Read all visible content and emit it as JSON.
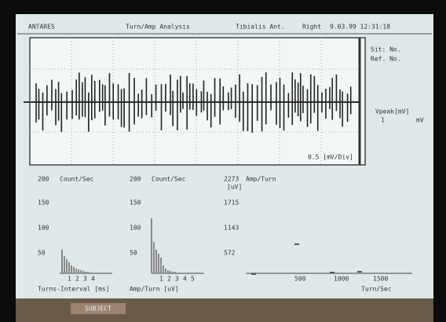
{
  "header": {
    "system": "ANTARES",
    "mode": "Turn/Amp Analysis",
    "muscle": "Tibialis Ant.",
    "side": "Right",
    "timestamp": "9.03.99 12:31:18"
  },
  "side_info": {
    "site": "Sit: No.",
    "ref": "Ref. No.",
    "vpeak": "Vpeak[mV]",
    "vpeak_value": "1",
    "unit": "mV"
  },
  "scale": "0.5 [mV/Div]",
  "panels": [
    {
      "title": "Count/Sec",
      "top": "200",
      "ticks": [
        "150",
        "100",
        "50"
      ],
      "xticks": [
        "1",
        "2",
        "3",
        "4"
      ],
      "xlabel": "Turns-Interval [ms]"
    },
    {
      "title": "Count/Sec",
      "top": "200",
      "ticks": [
        "150",
        "100",
        "50"
      ],
      "xticks": [
        "1",
        "2",
        "3",
        "4",
        "5"
      ],
      "xlabel": "Amp/Turn [uV]"
    },
    {
      "title": "Amp/Turn",
      "top": "2273",
      "unit": "[uV]",
      "ticks": [
        "1715",
        "1143",
        "572"
      ],
      "xticks": [
        "500",
        "1000",
        "1500"
      ],
      "xlabel": "Turn/Sec"
    }
  ],
  "footer": {
    "button": "SUBJECT"
  }
}
